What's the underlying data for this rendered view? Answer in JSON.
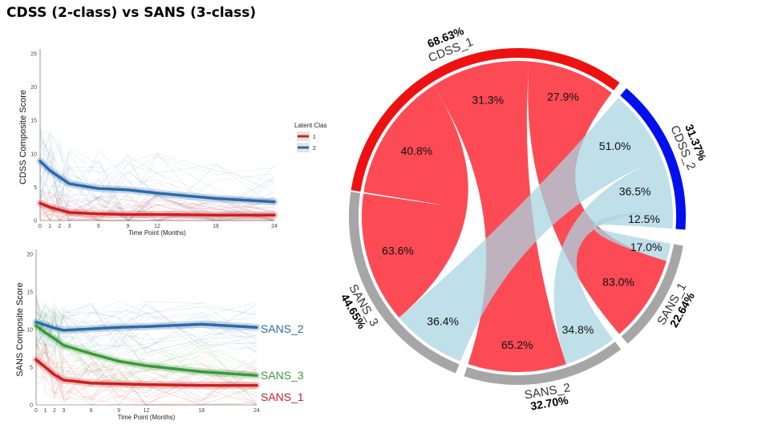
{
  "title": "CDSS (2-class) vs SANS (3-class)",
  "colors": {
    "class_red": "#cc1f1f",
    "class_blue": "#2c6aa8",
    "class_green": "#3a9a3a",
    "sector_red": "#ee1111",
    "sector_blue": "#0010ee",
    "sector_gray": "#a6a6a6",
    "chord_red": "#fc4b55",
    "chord_light_blue": "#a9d4e2"
  },
  "chart_data": [
    {
      "type": "line",
      "name": "cdss-trajectories",
      "xlabel": "Time Point (Months)",
      "ylabel": "CDSS Composite Score",
      "x": [
        0,
        1,
        2,
        3,
        6,
        9,
        12,
        18,
        24
      ],
      "xticks": [
        "0",
        "1",
        "2",
        "3",
        "6",
        "9",
        "12",
        "18",
        "24"
      ],
      "ylim": [
        0,
        25
      ],
      "yticks": [
        "0",
        "5",
        "10",
        "15",
        "20",
        "25"
      ],
      "legend": {
        "title": "Latent Clas",
        "position": "right",
        "entries": [
          "1",
          "2"
        ]
      },
      "series": [
        {
          "name": "1",
          "color": "#cc1f1f",
          "values": [
            2.6,
            2.0,
            1.6,
            1.2,
            1.0,
            0.9,
            0.9,
            0.8,
            0.8
          ]
        },
        {
          "name": "2",
          "color": "#2c6aa8",
          "values": [
            8.9,
            7.5,
            6.5,
            5.5,
            4.8,
            4.6,
            4.1,
            3.3,
            2.8
          ]
        }
      ]
    },
    {
      "type": "line",
      "name": "sans-trajectories",
      "xlabel": "Time Point (Months)",
      "ylabel": "SANS Composite Score",
      "x": [
        0,
        1,
        2,
        3,
        6,
        9,
        12,
        18,
        24
      ],
      "xticks": [
        "0",
        "1",
        "2",
        "3",
        "6",
        "9",
        "12",
        "18",
        "24"
      ],
      "ylim": [
        0,
        20
      ],
      "yticks": [
        "0",
        "5",
        "10",
        "15",
        "20"
      ],
      "series": [
        {
          "name": "SANS_2",
          "color": "#2c6aa8",
          "values": [
            11.0,
            10.6,
            10.2,
            9.9,
            10.1,
            10.3,
            10.4,
            10.7,
            10.3
          ]
        },
        {
          "name": "SANS_3",
          "color": "#3a9a3a",
          "values": [
            10.5,
            9.6,
            8.8,
            7.9,
            6.8,
            5.8,
            5.2,
            4.4,
            3.9
          ]
        },
        {
          "name": "SANS_1",
          "color": "#cc1f1f",
          "values": [
            6.0,
            5.0,
            4.0,
            3.3,
            2.9,
            2.8,
            2.7,
            2.6,
            2.6
          ]
        }
      ]
    },
    {
      "type": "chord",
      "name": "cdss-sans-chord",
      "sectors": [
        {
          "name": "CDSS_1",
          "percent": "68.63%",
          "value": 68.63,
          "color": "#ee1111"
        },
        {
          "name": "CDSS_2",
          "percent": "31.37%",
          "value": 31.37,
          "color": "#0010ee"
        },
        {
          "name": "SANS_1",
          "percent": "22.64%",
          "value": 22.64,
          "color": "#a6a6a6"
        },
        {
          "name": "SANS_2",
          "percent": "32.70%",
          "value": 32.7,
          "color": "#a6a6a6"
        },
        {
          "name": "SANS_3",
          "percent": "44.65%",
          "value": 44.65,
          "color": "#a6a6a6"
        }
      ],
      "links": [
        {
          "from": "CDSS_1",
          "to": "SANS_3",
          "from_label": "40.8%",
          "to_label": "63.6%"
        },
        {
          "from": "CDSS_1",
          "to": "SANS_2",
          "from_label": "31.3%",
          "to_label": "65.2%"
        },
        {
          "from": "CDSS_1",
          "to": "SANS_1",
          "from_label": "27.9%",
          "to_label": "83.0%"
        },
        {
          "from": "CDSS_2",
          "to": "SANS_3",
          "from_label": "51.0%",
          "to_label": "36.4%"
        },
        {
          "from": "CDSS_2",
          "to": "SANS_2",
          "from_label": "36.5%",
          "to_label": "34.8%"
        },
        {
          "from": "CDSS_2",
          "to": "SANS_1",
          "from_label": "12.5%",
          "to_label": "17.0%"
        }
      ]
    }
  ]
}
